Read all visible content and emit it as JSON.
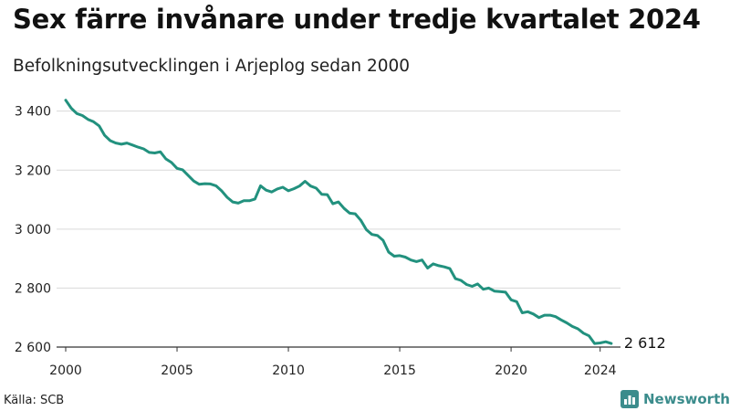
{
  "header": {
    "title": "Sex färre invånare under tredje kvartalet 2024",
    "subtitle": "Befolkningsutvecklingen i Arjeplog sedan 2000"
  },
  "footer": {
    "source": "Källa: SCB",
    "brand": "Newsworthy",
    "brand_icon": "bar-chart-logo-icon"
  },
  "colors": {
    "line": "#22917e",
    "grid": "#d9d9d9",
    "axis": "#333333",
    "brand": "#3b8c8c"
  },
  "chart_data": {
    "type": "line",
    "title": "Sex färre invånare under tredje kvartalet 2024",
    "subtitle": "Befolkningsutvecklingen i Arjeplog sedan 2000",
    "xlabel": "",
    "ylabel": "",
    "xlim": [
      2000,
      2024.75
    ],
    "ylim": [
      2600,
      3430
    ],
    "x_ticks": [
      2000,
      2005,
      2010,
      2015,
      2020,
      2024
    ],
    "y_ticks": [
      2600,
      2800,
      3000,
      3200,
      3400
    ],
    "y_tick_labels": [
      "2 600",
      "2 800",
      "3 000",
      "3 200",
      "3 400"
    ],
    "grid": "horizontal",
    "legend": "none",
    "end_label": "2 612",
    "series": [
      {
        "name": "",
        "frequency": "quarterly",
        "start_year": 2000,
        "values": [
          3437,
          3410,
          3392,
          3385,
          3372,
          3364,
          3350,
          3318,
          3300,
          3292,
          3288,
          3292,
          3285,
          3278,
          3272,
          3260,
          3258,
          3262,
          3238,
          3226,
          3206,
          3201,
          3182,
          3163,
          3152,
          3154,
          3153,
          3147,
          3130,
          3108,
          3092,
          3088,
          3096,
          3096,
          3102,
          3147,
          3132,
          3126,
          3136,
          3142,
          3130,
          3137,
          3146,
          3162,
          3146,
          3139,
          3118,
          3117,
          3086,
          3092,
          3070,
          3054,
          3052,
          3030,
          2998,
          2982,
          2978,
          2962,
          2922,
          2908,
          2910,
          2905,
          2895,
          2890,
          2895,
          2868,
          2882,
          2876,
          2872,
          2866,
          2832,
          2826,
          2812,
          2806,
          2814,
          2796,
          2800,
          2790,
          2788,
          2786,
          2760,
          2754,
          2716,
          2720,
          2712,
          2700,
          2708,
          2708,
          2703,
          2692,
          2682,
          2670,
          2662,
          2647,
          2638,
          2612,
          2614,
          2618,
          2612
        ]
      }
    ]
  }
}
